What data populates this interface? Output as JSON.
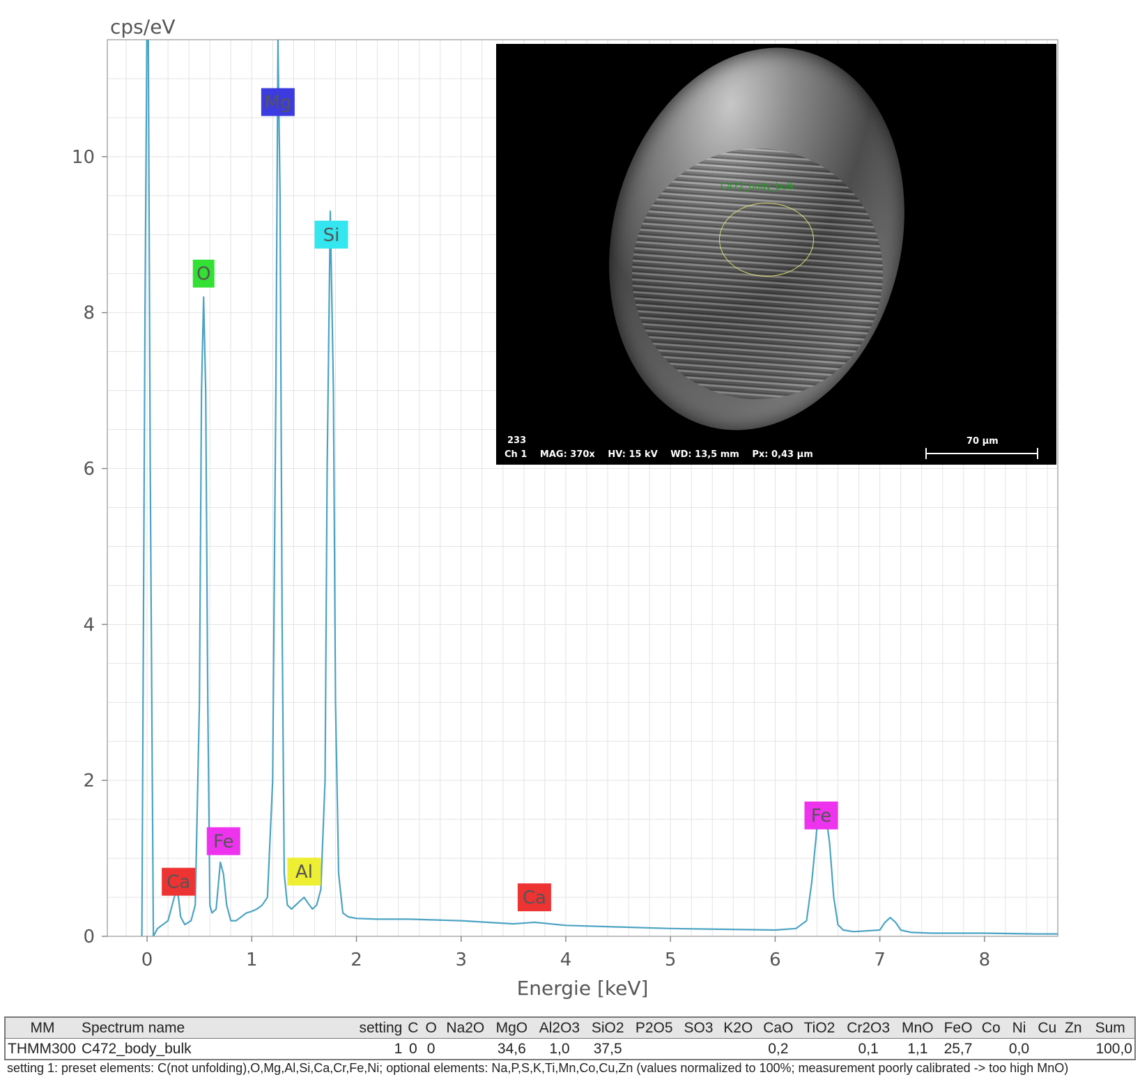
{
  "chart_data": {
    "type": "line",
    "title": "",
    "xlabel": "Energie [keV]",
    "ylabel": "cps/eV",
    "xlim": [
      -0.38,
      8.7
    ],
    "ylim": [
      0,
      11.5
    ],
    "x_ticks": [
      0,
      1,
      2,
      3,
      4,
      5,
      6,
      7,
      8
    ],
    "y_ticks": [
      0,
      2,
      4,
      6,
      8,
      10
    ],
    "grid": true,
    "line_color": "#4ba3c3",
    "series": [
      {
        "name": "",
        "x": [
          -0.05,
          -0.02,
          0.0,
          0.01,
          0.03,
          0.06,
          0.1,
          0.15,
          0.2,
          0.25,
          0.28,
          0.3,
          0.32,
          0.36,
          0.42,
          0.46,
          0.5,
          0.52,
          0.54,
          0.56,
          0.58,
          0.6,
          0.62,
          0.66,
          0.7,
          0.73,
          0.76,
          0.8,
          0.85,
          0.9,
          0.95,
          1.0,
          1.05,
          1.1,
          1.15,
          1.2,
          1.23,
          1.25,
          1.27,
          1.29,
          1.31,
          1.34,
          1.38,
          1.42,
          1.46,
          1.5,
          1.54,
          1.58,
          1.62,
          1.66,
          1.7,
          1.72,
          1.75,
          1.78,
          1.8,
          1.83,
          1.87,
          1.92,
          2.0,
          2.2,
          2.5,
          3.0,
          3.5,
          3.7,
          4.0,
          4.5,
          5.0,
          5.5,
          6.0,
          6.2,
          6.3,
          6.35,
          6.4,
          6.44,
          6.48,
          6.52,
          6.56,
          6.6,
          6.65,
          6.75,
          7.0,
          7.05,
          7.1,
          7.15,
          7.2,
          7.3,
          7.5,
          8.0,
          8.5,
          8.7
        ],
        "y": [
          0.0,
          8.0,
          12.0,
          12.0,
          6.0,
          0.0,
          0.1,
          0.15,
          0.2,
          0.45,
          0.6,
          0.5,
          0.25,
          0.15,
          0.2,
          0.4,
          3.0,
          7.0,
          8.2,
          7.0,
          3.0,
          0.4,
          0.3,
          0.35,
          0.95,
          0.8,
          0.4,
          0.2,
          0.2,
          0.25,
          0.3,
          0.32,
          0.35,
          0.4,
          0.5,
          2.0,
          7.0,
          11.5,
          9.5,
          4.0,
          0.8,
          0.4,
          0.35,
          0.4,
          0.45,
          0.5,
          0.42,
          0.35,
          0.4,
          0.6,
          2.0,
          6.0,
          9.3,
          7.0,
          3.0,
          0.8,
          0.3,
          0.25,
          0.23,
          0.22,
          0.22,
          0.2,
          0.16,
          0.18,
          0.14,
          0.12,
          0.1,
          0.09,
          0.08,
          0.1,
          0.2,
          0.7,
          1.4,
          1.72,
          1.6,
          1.2,
          0.5,
          0.15,
          0.08,
          0.06,
          0.08,
          0.18,
          0.24,
          0.18,
          0.08,
          0.05,
          0.04,
          0.04,
          0.03,
          0.03
        ]
      }
    ],
    "annotations": [
      {
        "text": "Mg",
        "x": 1.25,
        "y": 10.7,
        "bg": "#3b3be0",
        "fg": "#ffffff"
      },
      {
        "text": "Si",
        "x": 1.76,
        "y": 9.0,
        "bg": "#33e6ef",
        "fg": "#555555"
      },
      {
        "text": "O",
        "x": 0.54,
        "y": 8.5,
        "bg": "#33e033",
        "fg": "#555555"
      },
      {
        "text": "Fe",
        "x": 0.73,
        "y": 1.22,
        "bg": "#ee33ee",
        "fg": "#555555"
      },
      {
        "text": "Ca",
        "x": 0.3,
        "y": 0.7,
        "bg": "#ee3333",
        "fg": "#555555"
      },
      {
        "text": "Al",
        "x": 1.5,
        "y": 0.83,
        "bg": "#eeee33",
        "fg": "#555555"
      },
      {
        "text": "Ca",
        "x": 3.7,
        "y": 0.5,
        "bg": "#ee3333",
        "fg": "#555555"
      },
      {
        "text": "Fe",
        "x": 6.44,
        "y": 1.55,
        "bg": "#ee33ee",
        "fg": "#555555"
      }
    ]
  },
  "sem_image": {
    "roi_label": "C472_body_bulk",
    "id": "233",
    "channel": "Ch 1",
    "mag": "MAG: 370x",
    "hv": "HV: 15 kV",
    "wd": "WD: 13,5 mm",
    "px": "Px: 0,43 µm",
    "scale": "70 µm"
  },
  "table": {
    "headers": [
      "MM",
      "Spectrum name",
      "setting",
      "C",
      "O",
      "Na2O",
      "MgO",
      "Al2O3",
      "SiO2",
      "P2O5",
      "SO3",
      "K2O",
      "CaO",
      "TiO2",
      "Cr2O3",
      "MnO",
      "FeO",
      "Co",
      "Ni",
      "Cu",
      "Zn",
      "Sum"
    ],
    "row": [
      "THMM300",
      "C472_body_bulk",
      "1",
      "0",
      "0",
      "",
      "34,6",
      "1,0",
      "37,5",
      "",
      "",
      "",
      "0,2",
      "",
      "0,1",
      "1,1",
      "25,7",
      "",
      "0,0",
      "",
      "",
      "100,0"
    ]
  },
  "footnote": "setting 1: preset elements: C(not unfolding),O,Mg,Al,Si,Ca,Cr,Fe,Ni; optional elements: Na,P,S,K,Ti,Mn,Co,Cu,Zn (values normalized to 100%; measurement poorly calibrated -> too high MnO)"
}
